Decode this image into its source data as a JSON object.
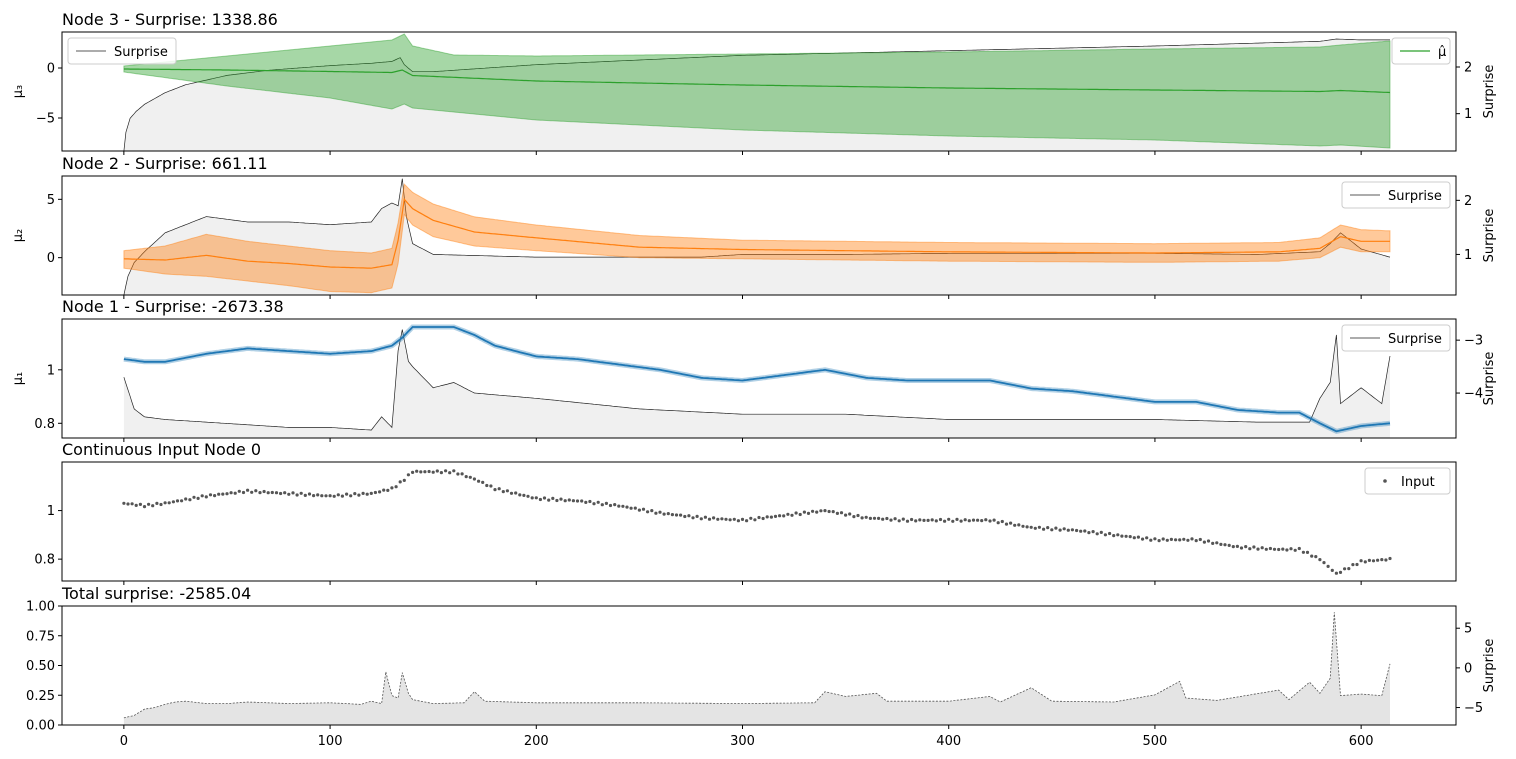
{
  "chart_data": [
    {
      "type": "line",
      "title": "Node 3 - Surprise: 1338.86",
      "ylabel": "μ₃",
      "ylabel_right": "Surprise",
      "ylim": [
        -8.3,
        3.6
      ],
      "ylim_right": [
        0.2,
        2.75
      ],
      "yticks": [
        -5,
        0
      ],
      "yticks_right": [
        1,
        2
      ],
      "mean_color": "#2ca02c",
      "band_color": "#2ca02c",
      "legends": [
        {
          "label": "Surprise",
          "position": "top-left"
        },
        {
          "label": "μ̂",
          "position": "top-right"
        }
      ],
      "series": [
        {
          "name": "μ̂",
          "axis": "left",
          "x": [
            0,
            50,
            100,
            130,
            135,
            140,
            200,
            300,
            400,
            500,
            580,
            590,
            614
          ],
          "values": [
            -0.1,
            -0.2,
            -0.35,
            -0.45,
            -0.2,
            -0.75,
            -1.3,
            -1.7,
            -2.0,
            -2.2,
            -2.35,
            -2.25,
            -2.45
          ]
        },
        {
          "name": "upper",
          "axis": "left",
          "x": [
            0,
            50,
            100,
            130,
            136,
            140,
            160,
            200,
            300,
            400,
            500,
            580,
            590,
            614
          ],
          "values": [
            0.2,
            1.2,
            2.2,
            2.8,
            3.4,
            2.2,
            1.3,
            1.2,
            1.4,
            1.6,
            1.9,
            2.1,
            2.3,
            2.7
          ]
        },
        {
          "name": "lower",
          "axis": "left",
          "x": [
            0,
            50,
            100,
            130,
            136,
            140,
            200,
            300,
            400,
            500,
            580,
            590,
            614
          ],
          "values": [
            -0.4,
            -1.8,
            -3.0,
            -4.1,
            -3.6,
            -4.0,
            -5.2,
            -6.2,
            -6.8,
            -7.2,
            -7.8,
            -7.7,
            -8.0
          ]
        },
        {
          "name": "Surprise",
          "axis": "right",
          "x": [
            0,
            1,
            3,
            6,
            10,
            20,
            30,
            50,
            70,
            100,
            120,
            130,
            134,
            136,
            140,
            150,
            200,
            300,
            400,
            500,
            580,
            588,
            600,
            614
          ],
          "values": [
            0.2,
            0.6,
            0.9,
            1.05,
            1.2,
            1.45,
            1.62,
            1.82,
            1.93,
            2.03,
            2.08,
            2.12,
            2.2,
            2.05,
            1.9,
            1.9,
            2.05,
            2.25,
            2.35,
            2.45,
            2.55,
            2.6,
            2.58,
            2.58
          ]
        }
      ]
    },
    {
      "type": "line",
      "title": "Node 2 - Surprise: 661.11",
      "ylabel": "μ₂",
      "ylabel_right": "Surprise",
      "ylim": [
        -3.2,
        7.0
      ],
      "ylim_right": [
        0.25,
        2.45
      ],
      "yticks": [
        0,
        5
      ],
      "yticks_right": [
        1,
        2
      ],
      "mean_color": "#ff7f0e",
      "band_color": "#ff7f0e",
      "legends": [
        {
          "label": "Surprise",
          "position": "top-right"
        }
      ],
      "series": [
        {
          "name": "mean",
          "axis": "left",
          "x": [
            0,
            20,
            40,
            60,
            80,
            100,
            120,
            130,
            133,
            136,
            140,
            150,
            170,
            200,
            250,
            300,
            400,
            500,
            560,
            580,
            590,
            600,
            614
          ],
          "values": [
            -0.1,
            -0.2,
            0.2,
            -0.3,
            -0.5,
            -0.8,
            -0.9,
            -0.6,
            1.5,
            5.0,
            4.2,
            3.2,
            2.2,
            1.7,
            0.9,
            0.7,
            0.5,
            0.4,
            0.5,
            0.8,
            1.8,
            1.4,
            1.4
          ]
        },
        {
          "name": "upper",
          "axis": "left",
          "x": [
            0,
            20,
            40,
            60,
            80,
            100,
            120,
            130,
            133,
            136,
            140,
            150,
            170,
            200,
            250,
            300,
            400,
            500,
            560,
            580,
            590,
            600,
            614
          ],
          "values": [
            0.6,
            1.0,
            2.0,
            1.4,
            1.0,
            0.6,
            0.4,
            0.8,
            3.0,
            6.3,
            5.6,
            4.6,
            3.5,
            2.8,
            1.9,
            1.5,
            1.3,
            1.2,
            1.3,
            1.7,
            2.8,
            2.4,
            2.3
          ]
        },
        {
          "name": "lower",
          "axis": "left",
          "x": [
            0,
            20,
            40,
            60,
            80,
            100,
            120,
            130,
            133,
            136,
            140,
            150,
            170,
            200,
            250,
            300,
            400,
            500,
            560,
            580,
            590,
            600,
            614
          ],
          "values": [
            -0.9,
            -1.4,
            -1.6,
            -2.0,
            -2.4,
            -2.9,
            -3.0,
            -2.6,
            -0.5,
            3.7,
            2.8,
            1.8,
            1.0,
            0.6,
            0.0,
            -0.1,
            -0.3,
            -0.4,
            -0.3,
            0.0,
            0.9,
            0.5,
            0.5
          ]
        },
        {
          "name": "Surprise",
          "axis": "right",
          "x": [
            0,
            2,
            5,
            10,
            20,
            40,
            60,
            80,
            100,
            120,
            125,
            130,
            133,
            135,
            137,
            140,
            150,
            200,
            280,
            300,
            350,
            400,
            500,
            550,
            580,
            585,
            590,
            600,
            614
          ],
          "values": [
            0.25,
            0.6,
            0.85,
            1.05,
            1.4,
            1.7,
            1.6,
            1.6,
            1.55,
            1.6,
            1.85,
            1.95,
            1.9,
            2.4,
            1.7,
            1.2,
            1.0,
            0.95,
            0.95,
            1.0,
            1.0,
            1.02,
            1.02,
            1.0,
            1.05,
            1.2,
            1.4,
            1.1,
            0.95
          ]
        }
      ]
    },
    {
      "type": "line",
      "title": "Node 1 - Surprise: -2673.38",
      "ylabel": "μ₁",
      "ylabel_right": "Surprise",
      "ylim": [
        0.745,
        1.19
      ],
      "ylim_right": [
        -4.85,
        -2.6
      ],
      "yticks": [
        0.8,
        1.0
      ],
      "yticks_right": [
        -4,
        -3
      ],
      "mean_color": "#1f77b4",
      "band_color": "#1f77b4",
      "legends": [
        {
          "label": "Surprise",
          "position": "top-right"
        }
      ],
      "series": [
        {
          "name": "mean",
          "axis": "left",
          "x": [
            0,
            10,
            20,
            40,
            60,
            80,
            100,
            120,
            130,
            135,
            140,
            150,
            160,
            170,
            180,
            200,
            220,
            240,
            260,
            280,
            300,
            320,
            340,
            360,
            380,
            400,
            420,
            440,
            460,
            480,
            500,
            520,
            540,
            560,
            570,
            580,
            588,
            600,
            614
          ],
          "values": [
            1.04,
            1.03,
            1.03,
            1.06,
            1.08,
            1.07,
            1.06,
            1.07,
            1.09,
            1.12,
            1.16,
            1.16,
            1.16,
            1.13,
            1.09,
            1.05,
            1.04,
            1.02,
            1.0,
            0.97,
            0.96,
            0.98,
            1.0,
            0.97,
            0.96,
            0.96,
            0.96,
            0.93,
            0.92,
            0.9,
            0.88,
            0.88,
            0.85,
            0.84,
            0.84,
            0.8,
            0.77,
            0.79,
            0.8
          ]
        },
        {
          "name": "Surprise",
          "axis": "right",
          "x": [
            0,
            5,
            10,
            20,
            40,
            60,
            80,
            100,
            120,
            125,
            130,
            133,
            135,
            138,
            140,
            150,
            160,
            170,
            200,
            250,
            300,
            350,
            400,
            450,
            500,
            550,
            575,
            580,
            585,
            588,
            590,
            600,
            610,
            614
          ],
          "values": [
            -3.7,
            -4.3,
            -4.45,
            -4.5,
            -4.55,
            -4.6,
            -4.65,
            -4.65,
            -4.7,
            -4.45,
            -4.65,
            -3.2,
            -2.8,
            -3.4,
            -3.5,
            -3.9,
            -3.8,
            -4.0,
            -4.1,
            -4.3,
            -4.4,
            -4.4,
            -4.5,
            -4.5,
            -4.5,
            -4.55,
            -4.55,
            -4.1,
            -3.8,
            -2.9,
            -4.2,
            -3.9,
            -4.2,
            -3.3
          ]
        }
      ]
    },
    {
      "type": "scatter",
      "title": "Continuous Input Node 0",
      "ylim": [
        0.71,
        1.2
      ],
      "yticks": [
        0.8,
        1.0
      ],
      "color": "#555555",
      "legends": [
        {
          "label": "Input",
          "position": "top-right"
        }
      ],
      "series": [
        {
          "name": "Input",
          "axis": "left",
          "x": [
            0,
            10,
            20,
            40,
            60,
            80,
            100,
            120,
            130,
            135,
            140,
            150,
            160,
            170,
            180,
            200,
            220,
            240,
            260,
            280,
            300,
            320,
            340,
            360,
            380,
            400,
            420,
            440,
            460,
            480,
            500,
            520,
            540,
            560,
            570,
            580,
            588,
            600,
            614
          ],
          "values": [
            1.03,
            1.02,
            1.03,
            1.06,
            1.08,
            1.07,
            1.06,
            1.07,
            1.09,
            1.12,
            1.16,
            1.16,
            1.16,
            1.13,
            1.09,
            1.05,
            1.04,
            1.02,
            0.99,
            0.97,
            0.96,
            0.98,
            1.0,
            0.97,
            0.96,
            0.96,
            0.96,
            0.93,
            0.92,
            0.9,
            0.88,
            0.88,
            0.85,
            0.84,
            0.84,
            0.8,
            0.74,
            0.79,
            0.8
          ]
        }
      ]
    },
    {
      "type": "area",
      "title": "Total surprise: -2585.04",
      "ylabel_right": "Surprise",
      "xlim": [
        -30,
        646
      ],
      "ylim": [
        0.0,
        1.0
      ],
      "ylim_right": [
        -7.2,
        7.8
      ],
      "yticks": [
        0.0,
        0.25,
        0.5,
        0.75,
        1.0
      ],
      "ytick_labels": [
        "0.00",
        "0.25",
        "0.50",
        "0.75",
        "1.00"
      ],
      "yticks_right": [
        -5,
        0,
        5
      ],
      "xticks": [
        0,
        100,
        200,
        300,
        400,
        500,
        600
      ],
      "color": "#888888",
      "series": [
        {
          "name": "Surprise",
          "axis": "right",
          "x": [
            0,
            5,
            10,
            15,
            20,
            25,
            30,
            40,
            50,
            60,
            80,
            100,
            115,
            120,
            125,
            127,
            130,
            133,
            135,
            138,
            140,
            150,
            165,
            170,
            175,
            200,
            250,
            300,
            335,
            340,
            350,
            365,
            370,
            400,
            420,
            425,
            440,
            450,
            480,
            500,
            512,
            515,
            530,
            560,
            565,
            575,
            580,
            585,
            587,
            590,
            600,
            610,
            614
          ],
          "values": [
            -6.3,
            -6.0,
            -5.2,
            -5.0,
            -4.6,
            -4.3,
            -4.2,
            -4.5,
            -4.5,
            -4.3,
            -4.5,
            -4.4,
            -4.6,
            -4.2,
            -4.5,
            -0.5,
            -3.5,
            -3.8,
            -0.6,
            -3.2,
            -4.0,
            -4.5,
            -4.4,
            -3.0,
            -4.2,
            -4.4,
            -4.4,
            -4.5,
            -4.4,
            -3.0,
            -3.6,
            -3.2,
            -4.2,
            -4.2,
            -3.6,
            -4.3,
            -2.5,
            -4.2,
            -4.3,
            -3.4,
            -1.7,
            -3.8,
            -4.1,
            -2.8,
            -4.0,
            -1.8,
            -3.2,
            -1.3,
            7.0,
            -3.5,
            -3.3,
            -3.5,
            0.5
          ]
        }
      ]
    }
  ]
}
